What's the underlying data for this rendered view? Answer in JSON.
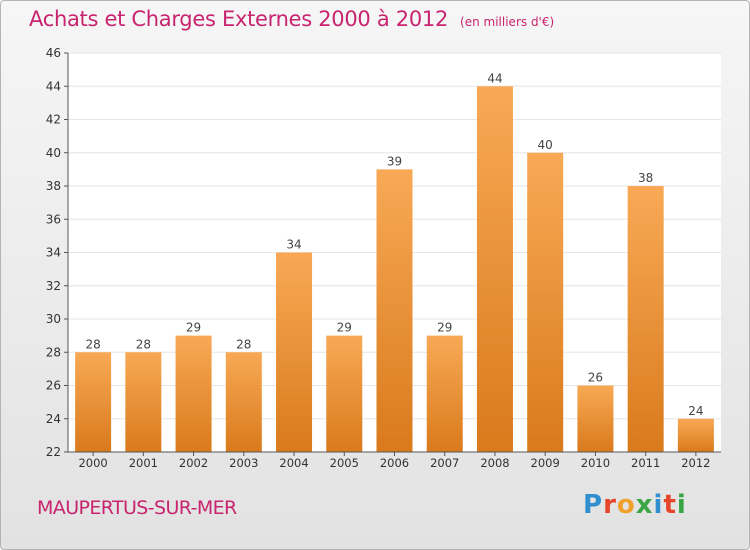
{
  "title": "Achats et Charges Externes 2000 à 2012",
  "subtitle": "(en milliers d'€)",
  "city": "MAUPERTUS-SUR-MER",
  "brand": {
    "text": "Proxiti",
    "letters": [
      {
        "char": "P",
        "color": "#2f8fd0"
      },
      {
        "char": "r",
        "color": "#e6452a"
      },
      {
        "char": "o",
        "color": "#f0a12a"
      },
      {
        "char": "x",
        "color": "#3aa544"
      },
      {
        "char": "i",
        "color": "#2f8fd0"
      },
      {
        "char": "t",
        "color": "#e6452a"
      },
      {
        "char": "i",
        "color": "#3aa544"
      }
    ]
  },
  "colors": {
    "title": "#c8246f",
    "bar_light": "#f8a955",
    "bar_dark": "#d97a1c",
    "axis": "#555555"
  },
  "chart_data": {
    "type": "bar",
    "categories": [
      "2000",
      "2001",
      "2002",
      "2003",
      "2004",
      "2005",
      "2006",
      "2007",
      "2008",
      "2009",
      "2010",
      "2011",
      "2012"
    ],
    "values": [
      28,
      28,
      29,
      28,
      34,
      29,
      39,
      29,
      44,
      40,
      26,
      38,
      24
    ],
    "data_labels": [
      "28",
      "28",
      "29",
      "28",
      "34",
      "29",
      "39",
      "29",
      "44",
      "40",
      "26",
      "38",
      "24"
    ],
    "ylim": [
      22,
      46
    ],
    "yticks": [
      22,
      24,
      26,
      28,
      30,
      32,
      34,
      36,
      38,
      40,
      42,
      44,
      46
    ],
    "grid": true
  }
}
